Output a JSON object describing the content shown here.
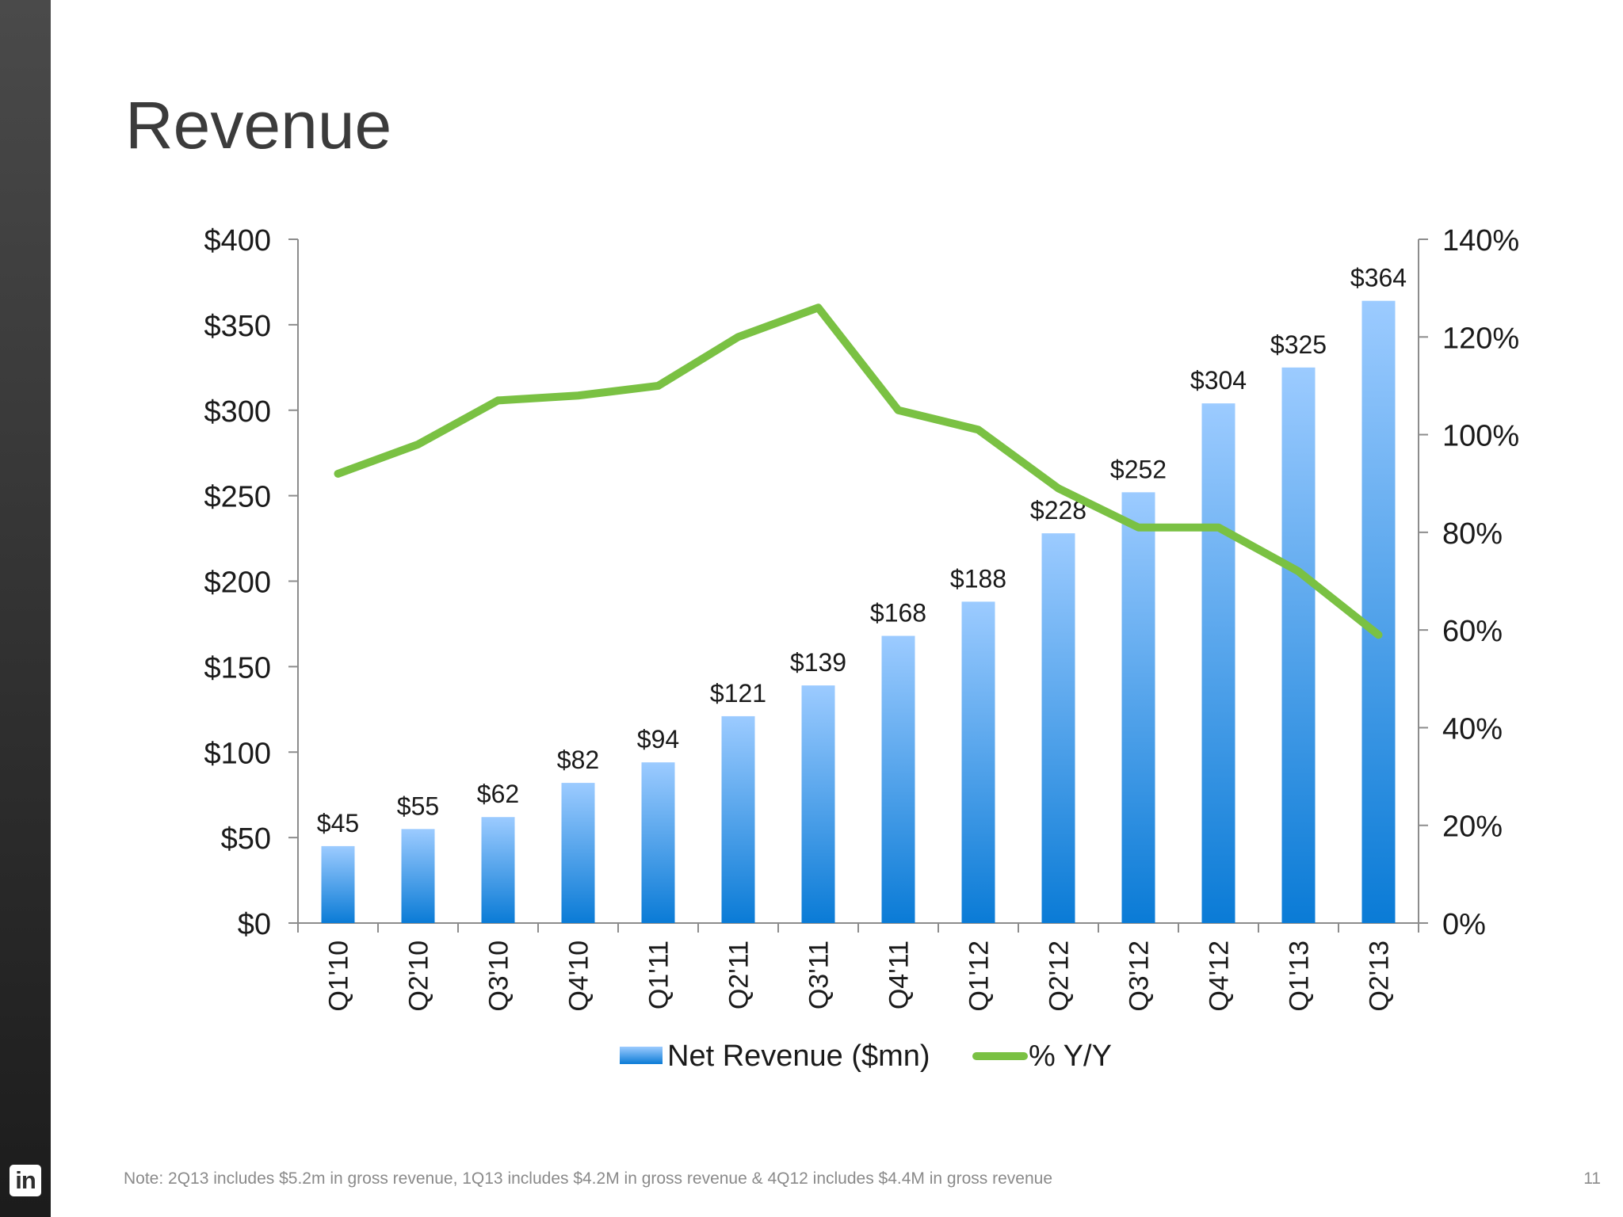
{
  "slide": {
    "title": "Revenue",
    "footnote": "Note: 2Q13 includes $5.2m in gross revenue, 1Q13 includes $4.2M in gross revenue & 4Q12 includes $4.4M in gross revenue",
    "page_number": "11",
    "logo_text": "in"
  },
  "colors": {
    "bar_top": "#9ccbff",
    "bar_bottom": "#0a7bd6",
    "line": "#7ac143",
    "axis": "#8c8c8c",
    "text": "#1a1a1a"
  },
  "chart_data": {
    "type": "bar",
    "categories": [
      "Q1'10",
      "Q2'10",
      "Q3'10",
      "Q4'10",
      "Q1'11",
      "Q2'11",
      "Q3'11",
      "Q4'11",
      "Q1'12",
      "Q2'12",
      "Q3'12",
      "Q4'12",
      "Q1'13",
      "Q2'13"
    ],
    "series": [
      {
        "name": "Net Revenue ($mn)",
        "type": "bar",
        "axis": "left",
        "values": [
          45,
          55,
          62,
          82,
          94,
          121,
          139,
          168,
          188,
          228,
          252,
          304,
          325,
          364
        ],
        "data_labels": [
          "$45",
          "$55",
          "$62",
          "$82",
          "$94",
          "$121",
          "$139",
          "$168",
          "$188",
          "$228",
          "$252",
          "$304",
          "$325",
          "$364"
        ]
      },
      {
        "name": "% Y/Y",
        "type": "line",
        "axis": "right",
        "values": [
          92,
          98,
          107,
          108,
          110,
          120,
          126,
          105,
          101,
          89,
          81,
          81,
          72,
          59
        ]
      }
    ],
    "y_left": {
      "ylim": [
        0,
        400
      ],
      "ticks": [
        0,
        50,
        100,
        150,
        200,
        250,
        300,
        350,
        400
      ],
      "tick_labels": [
        "$0",
        "$50",
        "$100",
        "$150",
        "$200",
        "$250",
        "$300",
        "$350",
        "$400"
      ]
    },
    "y_right": {
      "ylim": [
        0,
        140
      ],
      "ticks": [
        0,
        20,
        40,
        60,
        80,
        100,
        120,
        140
      ],
      "tick_labels": [
        "0%",
        "20%",
        "40%",
        "60%",
        "80%",
        "100%",
        "120%",
        "140%"
      ]
    },
    "grid": false,
    "legend_position": "bottom"
  }
}
